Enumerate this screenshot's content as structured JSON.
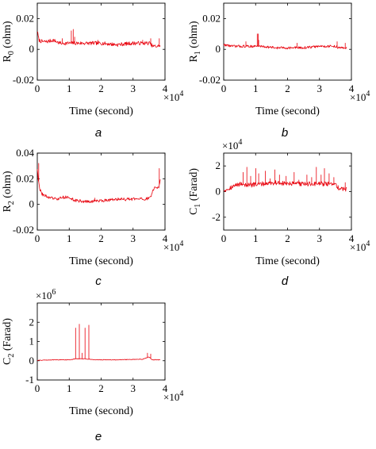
{
  "chart_data": [
    {
      "panel": "a",
      "type": "line",
      "xlabel": "Time (second)",
      "ylabel": "R0 (ohm)",
      "ylabel_main": "R",
      "ylabel_sub": "0",
      "ylabel_rest": " (ohm)",
      "x_multiplier": "×10",
      "x_multiplier_exp": "4",
      "y_multiplier": "",
      "y_multiplier_exp": "",
      "xlim": [
        0,
        4
      ],
      "ylim": [
        -0.02,
        0.03
      ],
      "xticks": [
        0,
        1,
        2,
        3,
        4
      ],
      "xtick_labels": [
        "0",
        "1",
        "2",
        "3",
        "4"
      ],
      "yticks": [
        -0.02,
        0,
        0.02
      ],
      "ytick_labels": [
        "-0.02",
        "0",
        "0.02"
      ],
      "x_end": 3.85,
      "base": [
        [
          0,
          0.012
        ],
        [
          0.05,
          0.006
        ],
        [
          0.15,
          0.005
        ],
        [
          0.3,
          0.005
        ],
        [
          0.5,
          0.006
        ],
        [
          0.7,
          0.004
        ],
        [
          0.9,
          0.004
        ],
        [
          1.0,
          0.004
        ],
        [
          1.3,
          0.004
        ],
        [
          1.6,
          0.004
        ],
        [
          2.0,
          0.004
        ],
        [
          2.5,
          0.003
        ],
        [
          3.0,
          0.004
        ],
        [
          3.3,
          0.004
        ],
        [
          3.55,
          0.004
        ],
        [
          3.6,
          0.002
        ],
        [
          3.85,
          0.002
        ]
      ],
      "spikes": [
        [
          1.07,
          0.012
        ],
        [
          1.12,
          0.013
        ],
        [
          1.17,
          0.008
        ],
        [
          0.78,
          0.007
        ],
        [
          1.9,
          0.006
        ],
        [
          3.3,
          0.006
        ],
        [
          3.55,
          0.007
        ],
        [
          3.82,
          0.007
        ]
      ],
      "noise": 0.0012,
      "series": [
        {
          "values": [
            0.012,
            0.006,
            0.005,
            0.005,
            0.006,
            0.004,
            0.004,
            0.004,
            0.004,
            0.004,
            0.004,
            0.003,
            0.004,
            0.004,
            0.004,
            0.002,
            0.002
          ]
        }
      ]
    },
    {
      "panel": "b",
      "type": "line",
      "xlabel": "Time (second)",
      "ylabel": "R1 (ohm)",
      "ylabel_main": "R",
      "ylabel_sub": "1",
      "ylabel_rest": " (ohm)",
      "x_multiplier": "×10",
      "x_multiplier_exp": "4",
      "y_multiplier": "",
      "y_multiplier_exp": "",
      "xlim": [
        0,
        4
      ],
      "ylim": [
        -0.02,
        0.03
      ],
      "xticks": [
        0,
        1,
        2,
        3,
        4
      ],
      "xtick_labels": [
        "0",
        "1",
        "2",
        "3",
        "4"
      ],
      "yticks": [
        -0.02,
        0,
        0.02
      ],
      "ytick_labels": [
        "-0.02",
        "0",
        "0.02"
      ],
      "x_end": 3.85,
      "base": [
        [
          0,
          0.003
        ],
        [
          0.3,
          0.002
        ],
        [
          0.6,
          0.002
        ],
        [
          0.9,
          0.002
        ],
        [
          1.2,
          0.002
        ],
        [
          1.6,
          0.001
        ],
        [
          2.0,
          0.001
        ],
        [
          2.5,
          0.001
        ],
        [
          3.0,
          0.002
        ],
        [
          3.5,
          0.002
        ],
        [
          3.6,
          0.001
        ],
        [
          3.85,
          0.001
        ]
      ],
      "spikes": [
        [
          1.05,
          0.01
        ],
        [
          1.08,
          0.01
        ],
        [
          1.1,
          0.006
        ],
        [
          0.7,
          0.005
        ],
        [
          2.3,
          0.004
        ],
        [
          3.55,
          0.005
        ],
        [
          3.8,
          0.004
        ]
      ],
      "noise": 0.0008,
      "series": [
        {
          "values": [
            0.003,
            0.002,
            0.002,
            0.002,
            0.002,
            0.001,
            0.001,
            0.001,
            0.002,
            0.002,
            0.001,
            0.001
          ]
        }
      ]
    },
    {
      "panel": "c",
      "type": "line",
      "xlabel": "Time (second)",
      "ylabel": "R2 (ohm)",
      "ylabel_main": "R",
      "ylabel_sub": "2",
      "ylabel_rest": " (ohm)",
      "x_multiplier": "×10",
      "x_multiplier_exp": "4",
      "y_multiplier": "",
      "y_multiplier_exp": "",
      "xlim": [
        0,
        4
      ],
      "ylim": [
        -0.02,
        0.04
      ],
      "xticks": [
        0,
        1,
        2,
        3,
        4
      ],
      "xtick_labels": [
        "0",
        "1",
        "2",
        "3",
        "4"
      ],
      "yticks": [
        -0.02,
        0,
        0.02,
        0.04
      ],
      "ytick_labels": [
        "-0.02",
        "0",
        "0.02",
        "0.04"
      ],
      "x_end": 3.85,
      "base": [
        [
          0,
          0.028
        ],
        [
          0.03,
          0.02
        ],
        [
          0.08,
          0.012
        ],
        [
          0.15,
          0.008
        ],
        [
          0.3,
          0.006
        ],
        [
          0.6,
          0.004
        ],
        [
          0.9,
          0.006
        ],
        [
          1.2,
          0.003
        ],
        [
          1.6,
          0.002
        ],
        [
          2.0,
          0.003
        ],
        [
          2.5,
          0.004
        ],
        [
          3.0,
          0.004
        ],
        [
          3.4,
          0.004
        ],
        [
          3.55,
          0.006
        ],
        [
          3.65,
          0.012
        ],
        [
          3.75,
          0.014
        ],
        [
          3.8,
          0.012
        ],
        [
          3.85,
          0.02
        ]
      ],
      "spikes": [
        [
          3.82,
          0.028
        ],
        [
          0.05,
          0.032
        ],
        [
          1.8,
          0.005
        ]
      ],
      "noise": 0.0012,
      "series": [
        {
          "values": [
            0.028,
            0.02,
            0.012,
            0.008,
            0.006,
            0.004,
            0.006,
            0.003,
            0.002,
            0.003,
            0.004,
            0.004,
            0.004,
            0.006,
            0.012,
            0.014,
            0.012,
            0.02
          ]
        }
      ]
    },
    {
      "panel": "d",
      "type": "line",
      "xlabel": "Time (second)",
      "ylabel": "C1 (Farad)",
      "ylabel_main": "C",
      "ylabel_sub": "1",
      "ylabel_rest": " (Farad)",
      "x_multiplier": "×10",
      "x_multiplier_exp": "4",
      "y_multiplier": "×10",
      "y_multiplier_exp": "4",
      "xlim": [
        0,
        4
      ],
      "ylim": [
        -3,
        3
      ],
      "xticks": [
        0,
        1,
        2,
        3,
        4
      ],
      "xtick_labels": [
        "0",
        "1",
        "2",
        "3",
        "4"
      ],
      "yticks": [
        -2,
        0,
        2
      ],
      "ytick_labels": [
        "-2",
        "0",
        "2"
      ],
      "x_end": 3.85,
      "base": [
        [
          0,
          0.1
        ],
        [
          0.2,
          0.3
        ],
        [
          0.5,
          0.6
        ],
        [
          0.8,
          0.5
        ],
        [
          1.2,
          0.6
        ],
        [
          1.6,
          0.7
        ],
        [
          2.0,
          0.6
        ],
        [
          2.4,
          0.6
        ],
        [
          2.8,
          0.6
        ],
        [
          3.2,
          0.6
        ],
        [
          3.5,
          0.5
        ],
        [
          3.65,
          0.2
        ],
        [
          3.85,
          0.2
        ]
      ],
      "spikes": [
        [
          0.6,
          1.5
        ],
        [
          0.72,
          1.9
        ],
        [
          0.85,
          1.2
        ],
        [
          1.0,
          1.8
        ],
        [
          1.1,
          1.4
        ],
        [
          1.3,
          1.6
        ],
        [
          1.45,
          1.0
        ],
        [
          1.6,
          1.7
        ],
        [
          1.75,
          1.3
        ],
        [
          1.95,
          1.2
        ],
        [
          2.2,
          1.5
        ],
        [
          2.35,
          0.9
        ],
        [
          2.6,
          1.3
        ],
        [
          2.75,
          1.1
        ],
        [
          2.9,
          1.9
        ],
        [
          3.05,
          1.3
        ],
        [
          3.15,
          1.8
        ],
        [
          3.3,
          1.4
        ],
        [
          3.45,
          1.1
        ],
        [
          3.8,
          0.7
        ]
      ],
      "noise": 0.18,
      "series": [
        {
          "values": [
            0.1,
            0.3,
            0.6,
            0.5,
            0.6,
            0.7,
            0.6,
            0.6,
            0.6,
            0.6,
            0.5,
            0.2,
            0.2
          ]
        }
      ]
    },
    {
      "panel": "e",
      "type": "line",
      "xlabel": "Time (second)",
      "ylabel": "C2 (Farad)",
      "ylabel_main": "C",
      "ylabel_sub": "2",
      "ylabel_rest": " (Farad)",
      "x_multiplier": "×10",
      "x_multiplier_exp": "4",
      "y_multiplier": "×10",
      "y_multiplier_exp": "6",
      "xlim": [
        0,
        4
      ],
      "ylim": [
        -1,
        3
      ],
      "xticks": [
        0,
        1,
        2,
        3,
        4
      ],
      "xtick_labels": [
        "0",
        "1",
        "2",
        "3",
        "4"
      ],
      "yticks": [
        -1,
        0,
        1,
        2
      ],
      "ytick_labels": [
        "-1",
        "0",
        "1",
        "2"
      ],
      "x_end": 3.85,
      "base": [
        [
          0,
          0.02
        ],
        [
          0.5,
          0.05
        ],
        [
          1.0,
          0.05
        ],
        [
          1.2,
          0.1
        ],
        [
          1.5,
          0.1
        ],
        [
          1.8,
          0.05
        ],
        [
          2.5,
          0.05
        ],
        [
          3.3,
          0.08
        ],
        [
          3.5,
          0.2
        ],
        [
          3.6,
          0.05
        ],
        [
          3.85,
          0.05
        ]
      ],
      "spikes": [
        [
          1.2,
          1.7
        ],
        [
          1.32,
          1.9
        ],
        [
          1.5,
          1.7
        ],
        [
          1.62,
          1.85
        ],
        [
          1.4,
          0.4
        ],
        [
          3.45,
          0.4
        ],
        [
          3.55,
          0.35
        ]
      ],
      "noise": 0.015,
      "series": [
        {
          "values": [
            0.02,
            0.05,
            0.05,
            0.1,
            0.1,
            0.05,
            0.05,
            0.08,
            0.2,
            0.05,
            0.05
          ]
        }
      ]
    }
  ]
}
